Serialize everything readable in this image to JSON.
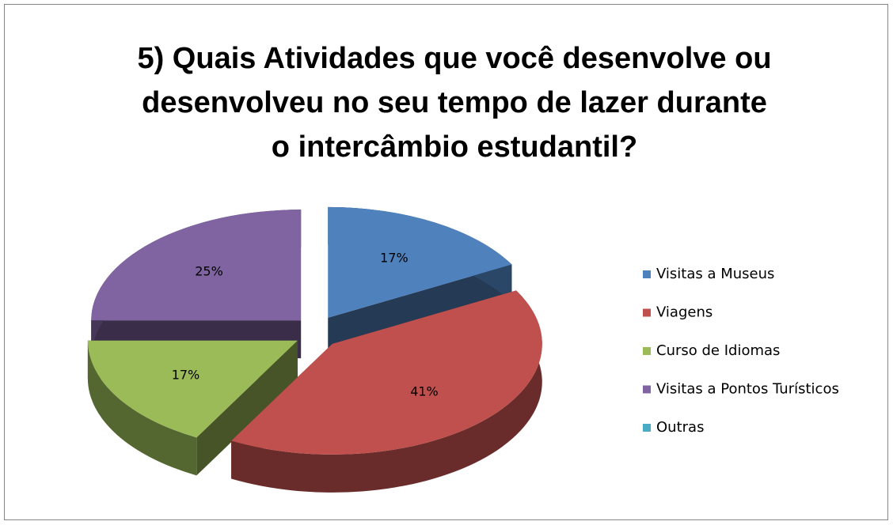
{
  "chart_data": {
    "type": "pie",
    "title": [
      "5) Quais Atividades que você desenvolve ou",
      "desenvolveu no seu tempo de lazer durante",
      "o intercâmbio estudantil?"
    ],
    "categories": [
      "Visitas a Museus",
      "Viagens",
      "Curso de Idiomas",
      "Visitas a Pontos Turísticos",
      "Outras"
    ],
    "values": [
      17,
      41,
      17,
      25,
      0
    ],
    "value_labels": [
      "17%",
      "41%",
      "17%",
      "25%",
      null
    ],
    "colors": [
      "#4f81bd",
      "#c0504d",
      "#9bbb59",
      "#8064a2",
      "#4bacc6"
    ],
    "legend": "right"
  }
}
